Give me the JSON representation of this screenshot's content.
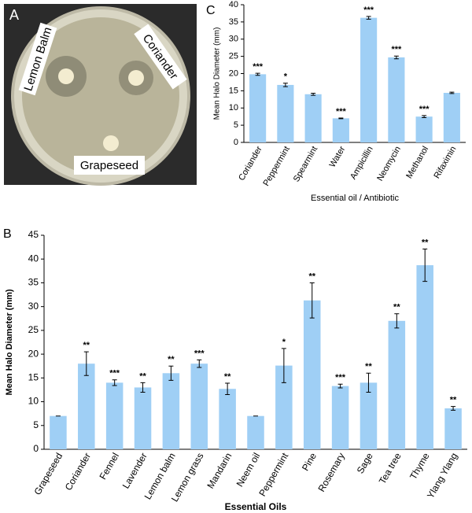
{
  "photo": {
    "label": "A",
    "texts": [
      "Lemon Balm",
      "Coriander",
      "Grapeseed"
    ]
  },
  "chart_data": [
    {
      "type": "bar",
      "panel_label": "C",
      "y_label": "Mean Halo Diameter (mm)",
      "x_label": "Essential oil / Antibiotic",
      "categories": [
        "Coriander",
        "Peppermint",
        "Spearmint",
        "Water",
        "Ampicillin",
        "Neomycin",
        "Methanol",
        "Rifaximin"
      ],
      "values": [
        19.8,
        16.7,
        14,
        7,
        36.2,
        24.7,
        7.5,
        14.4
      ],
      "errors": [
        0.3,
        0.5,
        0.3,
        0.1,
        0.4,
        0.4,
        0.3,
        0.2
      ],
      "annotations": [
        "***",
        "*",
        null,
        "***",
        "***",
        "***",
        "***",
        null
      ],
      "color": "#9fcff5",
      "ylim": [
        0,
        40
      ],
      "yticks": [
        0,
        5,
        10,
        15,
        20,
        25,
        30,
        35,
        40
      ]
    },
    {
      "type": "bar",
      "panel_label": "B",
      "y_label": "Mean Halo Diameter (mm)",
      "x_label": "Essential Oils",
      "categories": [
        "Grapeseed",
        "Coriander",
        "Fennel",
        "Lavender",
        "Lemon balm",
        "Lemon grass",
        "Mandarin",
        "Neem oil",
        "Peppermint",
        "Pine",
        "Rosemary",
        "Sage",
        "Tea tree",
        "Thyme",
        "Ylang Ylang"
      ],
      "values": [
        7,
        18,
        14,
        13,
        16,
        18,
        12.7,
        7,
        17.6,
        31.3,
        13.3,
        14,
        27,
        38.7,
        8.6
      ],
      "errors": [
        0,
        2.5,
        0.6,
        1,
        1.5,
        0.8,
        1.2,
        0,
        3.6,
        3.7,
        0.4,
        2,
        1.5,
        3.4,
        0.4
      ],
      "annotations": [
        null,
        "**",
        "***",
        "**",
        "**",
        "***",
        "**",
        null,
        "*",
        "**",
        "***",
        "**",
        "**",
        "**",
        "**"
      ],
      "color": "#9fcff5",
      "ylim": [
        0,
        45
      ],
      "yticks": [
        0,
        5,
        10,
        15,
        20,
        25,
        30,
        35,
        40,
        45
      ]
    }
  ]
}
